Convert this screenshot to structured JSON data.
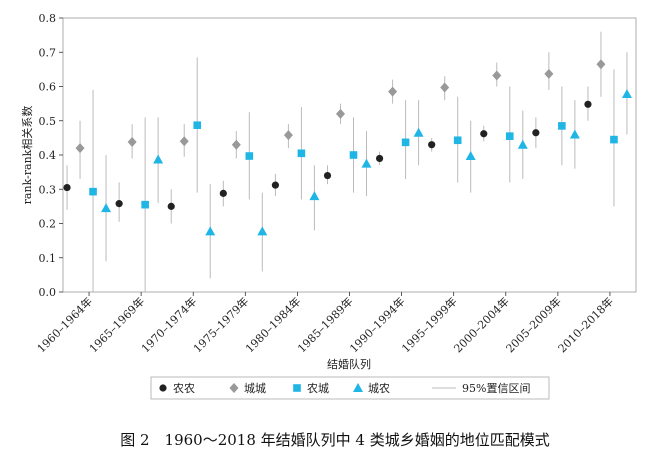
{
  "chart_data": {
    "type": "scatter",
    "title": "",
    "caption": "图 2　1960～2018 年结婚队列中 4 类城乡婚姻的地位匹配模式",
    "xlabel": "结婚队列",
    "ylabel": "rank-rank相关系数",
    "ylim": [
      0,
      0.8
    ],
    "yticks": [
      "0.0",
      "0.1",
      "0.2",
      "0.3",
      "0.4",
      "0.5",
      "0.6",
      "0.7",
      "0.8"
    ],
    "categories": [
      "1960–1964年",
      "1965–1969年",
      "1970–1974年",
      "1975–1979年",
      "1980–1984年",
      "1985–1989年",
      "1990–1994年",
      "1995–1999年",
      "2000–2004年",
      "2005–2009年",
      "2010–2018年"
    ],
    "series": [
      {
        "name": "农农",
        "marker": "circle",
        "color": "#222222",
        "values": [
          0.305,
          0.258,
          0.25,
          0.288,
          0.312,
          0.34,
          0.39,
          0.43,
          0.462,
          0.465,
          0.548
        ],
        "ci_low": [
          0.24,
          0.205,
          0.2,
          0.25,
          0.28,
          0.315,
          0.37,
          0.41,
          0.44,
          0.42,
          0.5
        ],
        "ci_high": [
          0.37,
          0.32,
          0.3,
          0.325,
          0.345,
          0.37,
          0.41,
          0.45,
          0.485,
          0.51,
          0.6
        ]
      },
      {
        "name": "城城",
        "marker": "diamond",
        "color": "#999999",
        "values": [
          0.42,
          0.438,
          0.44,
          0.43,
          0.458,
          0.52,
          0.585,
          0.597,
          0.632,
          0.637,
          0.665
        ],
        "ci_low": [
          0.33,
          0.39,
          0.395,
          0.39,
          0.42,
          0.49,
          0.55,
          0.56,
          0.6,
          0.59,
          0.57
        ],
        "ci_high": [
          0.5,
          0.49,
          0.49,
          0.47,
          0.49,
          0.55,
          0.62,
          0.63,
          0.67,
          0.7,
          0.76
        ]
      },
      {
        "name": "农城",
        "marker": "square",
        "color": "#1fb6e6",
        "values": [
          0.293,
          0.255,
          0.487,
          0.397,
          0.405,
          0.4,
          0.437,
          0.443,
          0.455,
          0.485,
          0.445
        ],
        "ci_low": [
          0.0,
          0.0,
          0.29,
          0.27,
          0.27,
          0.29,
          0.33,
          0.32,
          0.32,
          0.37,
          0.25
        ],
        "ci_high": [
          0.59,
          0.51,
          0.685,
          0.525,
          0.54,
          0.51,
          0.56,
          0.57,
          0.6,
          0.6,
          0.65
        ]
      },
      {
        "name": "城农",
        "marker": "triangle",
        "color": "#1fb6e6",
        "values": [
          0.245,
          0.387,
          0.177,
          0.177,
          0.28,
          0.375,
          0.465,
          0.397,
          0.43,
          0.46,
          0.578
        ],
        "ci_low": [
          0.09,
          0.26,
          0.04,
          0.06,
          0.18,
          0.28,
          0.37,
          0.29,
          0.33,
          0.36,
          0.46
        ],
        "ci_high": [
          0.4,
          0.51,
          0.315,
          0.29,
          0.37,
          0.47,
          0.56,
          0.5,
          0.53,
          0.56,
          0.7
        ]
      }
    ],
    "legend": {
      "placement": "bottom",
      "items": [
        {
          "label": "农农",
          "marker": "circle"
        },
        {
          "label": "城城",
          "marker": "diamond"
        },
        {
          "label": "农城",
          "marker": "square"
        },
        {
          "label": "城农",
          "marker": "triangle"
        },
        {
          "label": "95%置信区间",
          "marker": "line"
        }
      ]
    },
    "colors": {
      "ci": "#bbbbbb",
      "axis": "#333333",
      "frame": "#999999"
    }
  }
}
